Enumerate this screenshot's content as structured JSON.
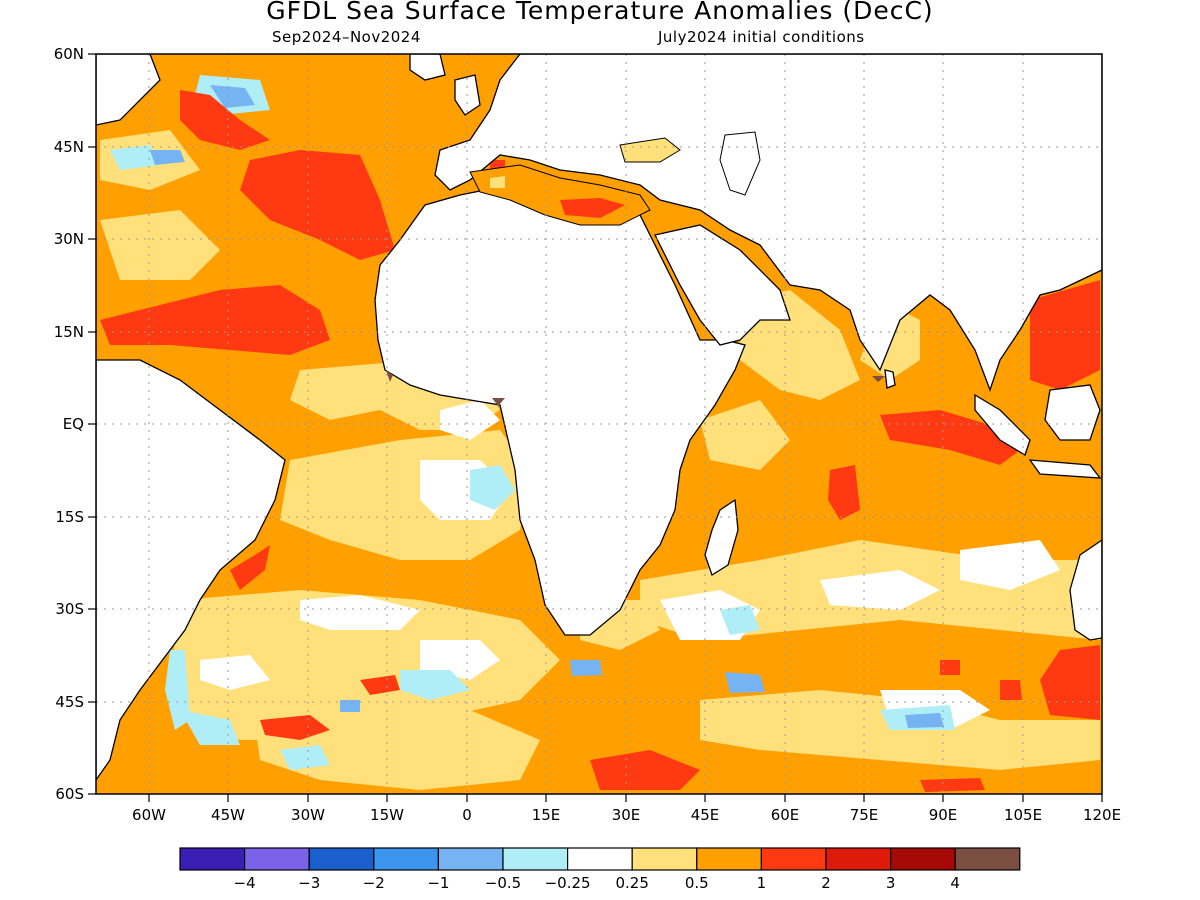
{
  "title": "GFDL Sea Surface Temperature Anomalies (DecC)",
  "subtitle_left": "Sep2024–Nov2024",
  "subtitle_right": "July2024 initial conditions",
  "map": {
    "lat_range": [
      -60,
      60
    ],
    "lon_range": [
      -70,
      120
    ],
    "lat_ticks": [
      "60N",
      "45N",
      "30N",
      "15N",
      "EQ",
      "15S",
      "30S",
      "45S",
      "60S"
    ],
    "lon_ticks": [
      "60W",
      "45W",
      "30W",
      "15W",
      "0",
      "15E",
      "30E",
      "45E",
      "60E",
      "75E",
      "90E",
      "105E",
      "120E"
    ],
    "grid": "dotted"
  },
  "colorbar": {
    "colors": [
      "#3a1fb5",
      "#7a63e8",
      "#1a5fcc",
      "#3b95ee",
      "#76b3f2",
      "#b0eef7",
      "#ffffff",
      "#ffe07a",
      "#ff9f00",
      "#ff3a12",
      "#dd1a0c",
      "#a60a06",
      "#7a4f41"
    ],
    "labels": [
      "−4",
      "−3",
      "−2",
      "−1",
      "−0.5",
      "−0.25",
      "0.25",
      "0.5",
      "1",
      "2",
      "3",
      "4"
    ]
  }
}
